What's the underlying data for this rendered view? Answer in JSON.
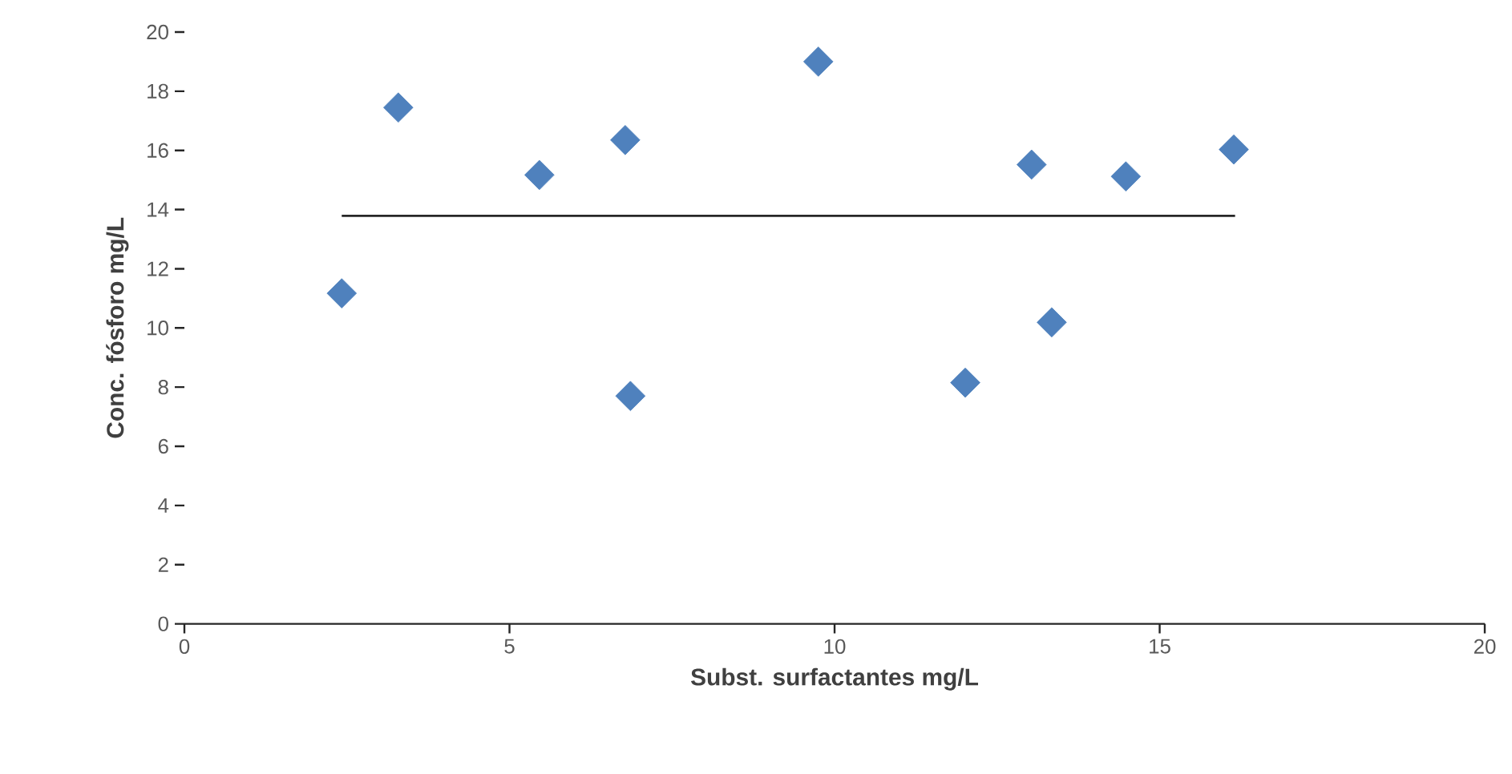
{
  "chart_data": {
    "type": "scatter",
    "xlabel": "Subst. surfactantes  mg/L",
    "ylabel": "Conc. fósforo mg/L",
    "xlim": [
      0,
      20
    ],
    "xticks": [
      0,
      5,
      10,
      15,
      20
    ],
    "ylim": [
      0,
      20
    ],
    "yticks": [
      0,
      2,
      4,
      6,
      8,
      10,
      12,
      14,
      16,
      18,
      20
    ],
    "grid": false,
    "marker": "diamond",
    "series": [
      {
        "color": "#4f81bd",
        "x": [
          2.42,
          3.29,
          5.46,
          6.78,
          6.86,
          9.75,
          12.01,
          13.03,
          13.34,
          14.48,
          16.14
        ],
        "values": [
          11.17,
          17.45,
          15.17,
          16.35,
          7.7,
          19.0,
          8.15,
          15.52,
          10.19,
          15.12,
          16.03
        ]
      },
      {
        "type": "line",
        "color": "#262626",
        "marker": "none",
        "line_style": "solid",
        "x": [
          2.42,
          16.16
        ],
        "values": [
          13.79,
          13.79
        ]
      }
    ]
  }
}
